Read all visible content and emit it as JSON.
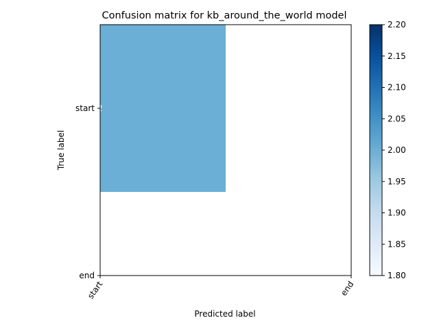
{
  "chart_data": {
    "type": "heatmap",
    "title": "Confusion matrix for kb_around_the_world model",
    "xlabel": "Predicted label",
    "ylabel": "True label",
    "x_categories": [
      "start",
      "end"
    ],
    "y_categories": [
      "start",
      "end"
    ],
    "cells": [
      {
        "true": "start",
        "predicted": "start",
        "value": 2,
        "label": "2"
      }
    ],
    "colormap": "Blues",
    "cell_color": "#6baed6",
    "colorbar": {
      "min": 1.8,
      "max": 2.2,
      "ticks": [
        "1.80",
        "1.85",
        "1.90",
        "1.95",
        "2.00",
        "2.05",
        "2.10",
        "2.15",
        "2.20"
      ]
    },
    "grid": false
  }
}
